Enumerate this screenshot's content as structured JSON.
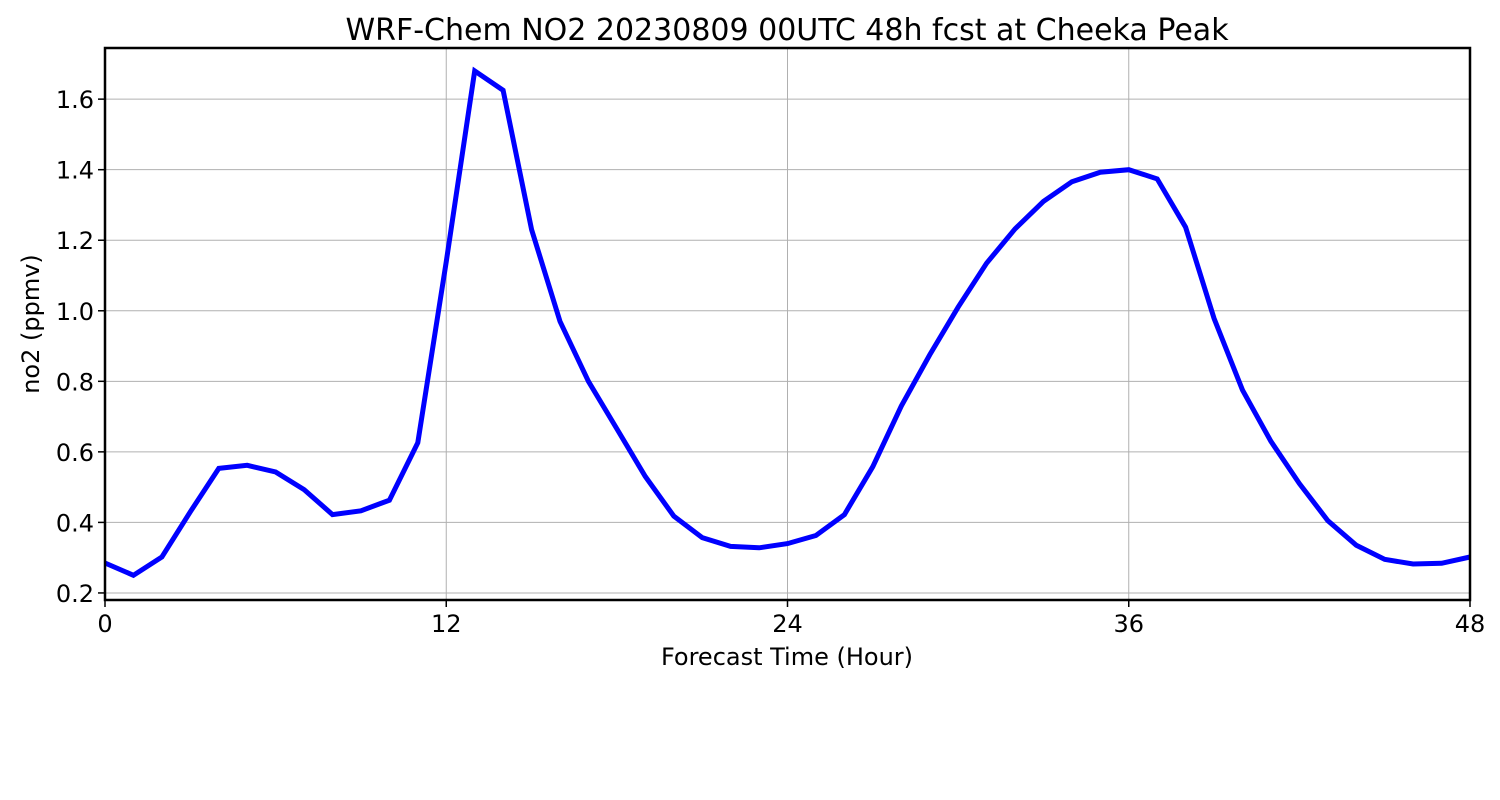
{
  "chart_data": {
    "type": "line",
    "title": "WRF-Chem NO2  20230809 00UTC 48h fcst at Cheeka Peak",
    "xlabel": "Forecast Time (Hour)",
    "ylabel": "no2  (ppmv)",
    "xlim": [
      0,
      48
    ],
    "ylim": [
      0.18,
      1.745
    ],
    "xticks": [
      0,
      12,
      24,
      36,
      48
    ],
    "yticks": [
      0.2,
      0.4,
      0.6,
      0.8,
      1.0,
      1.2,
      1.4,
      1.6
    ],
    "ytick_labels": [
      "0.2",
      "0.4",
      "0.6",
      "0.8",
      "1.0",
      "1.2",
      "1.4",
      "1.6"
    ],
    "grid": true,
    "series": [
      {
        "color": "#0000ff",
        "x": [
          0,
          1,
          2,
          3,
          4,
          5,
          6,
          7,
          8,
          9,
          10,
          11,
          12,
          13,
          14,
          15,
          16,
          17,
          18,
          19,
          20,
          21,
          22,
          23,
          24,
          25,
          26,
          27,
          28,
          29,
          30,
          31,
          32,
          33,
          34,
          35,
          36,
          37,
          38,
          39,
          40,
          41,
          42,
          43,
          44,
          45,
          46,
          47,
          48
        ],
        "y": [
          0.285,
          0.25,
          0.302,
          0.43,
          0.553,
          0.562,
          0.543,
          0.493,
          0.422,
          0.433,
          0.463,
          0.626,
          1.14,
          1.68,
          1.625,
          1.23,
          0.97,
          0.8,
          0.665,
          0.53,
          0.418,
          0.357,
          0.332,
          0.328,
          0.34,
          0.363,
          0.422,
          0.558,
          0.73,
          0.875,
          1.01,
          1.135,
          1.232,
          1.31,
          1.366,
          1.393,
          1.4,
          1.374,
          1.237,
          0.978,
          0.775,
          0.63,
          0.51,
          0.405,
          0.335,
          0.295,
          0.282,
          0.284,
          0.302
        ]
      }
    ]
  }
}
